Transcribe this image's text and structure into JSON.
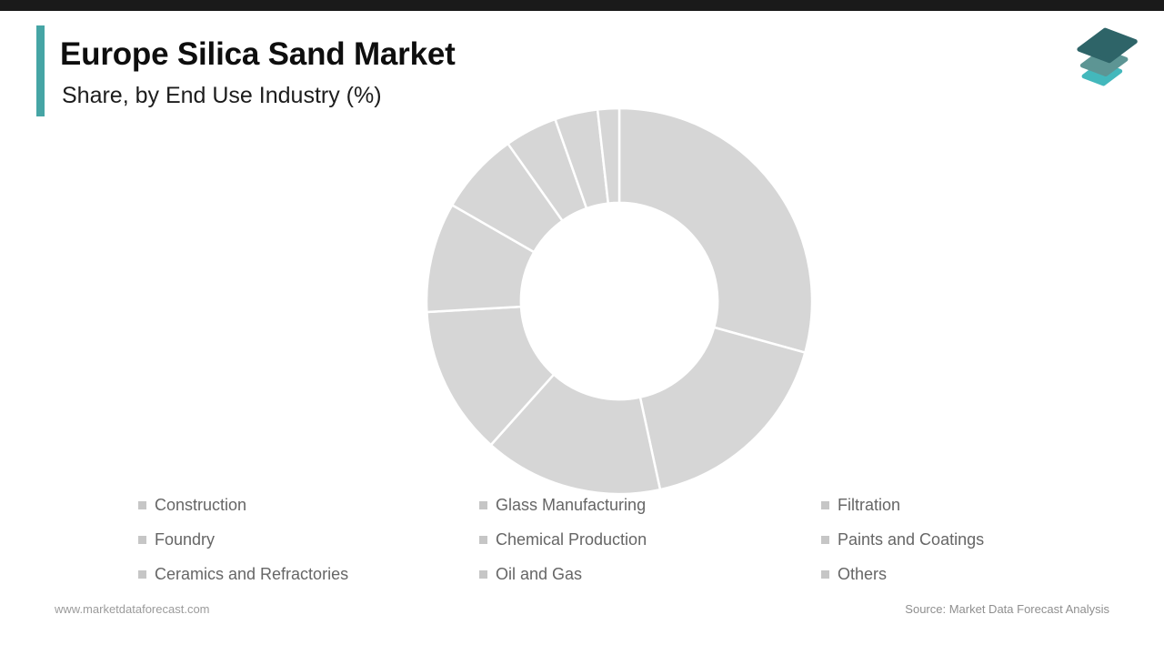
{
  "page": {
    "background": "#ffffff",
    "topbar_color": "#1a1a1a",
    "accent_color": "#46a5a5"
  },
  "header": {
    "title": "Europe Silica Sand Market",
    "subtitle": "Share, by End Use Industry (%)"
  },
  "brand": {
    "logo_colors": {
      "top": "#2e6468",
      "middle": "#5d9594",
      "bottom": "#43b8bc"
    }
  },
  "chart_data": {
    "type": "pie",
    "variant": "donut",
    "title": "Europe Silica Sand Market",
    "subtitle": "Share, by End Use Industry (%)",
    "unit": "%",
    "start_angle_deg": 0,
    "direction": "clockwise",
    "inner_radius_ratio": 0.51,
    "segment_color": "#d6d6d6",
    "divider_color": "#ffffff",
    "legend_position": "bottom",
    "series": [
      {
        "label": "Construction",
        "value": 29.3
      },
      {
        "label": "Glass Manufacturing",
        "value": 17.3
      },
      {
        "label": "Filtration",
        "value": 15.0
      },
      {
        "label": "Foundry",
        "value": 12.5
      },
      {
        "label": "Chemical Production",
        "value": 9.2
      },
      {
        "label": "Paints and Coatings",
        "value": 6.9
      },
      {
        "label": "Ceramics and Refractories",
        "value": 4.4
      },
      {
        "label": "Oil and Gas",
        "value": 3.6
      },
      {
        "label": "Others",
        "value": 1.8
      }
    ]
  },
  "legend": {
    "marker_color": "#c6c6c6",
    "text_color": "#666666",
    "columns": [
      {
        "items": [
          {
            "label": "Construction"
          },
          {
            "label": "Foundry"
          },
          {
            "label": "Ceramics and Refractories"
          }
        ]
      },
      {
        "items": [
          {
            "label": "Glass Manufacturing"
          },
          {
            "label": "Chemical Production"
          },
          {
            "label": "Oil and Gas"
          }
        ]
      },
      {
        "items": [
          {
            "label": "Filtration"
          },
          {
            "label": "Paints and Coatings"
          },
          {
            "label": "Others"
          }
        ]
      }
    ]
  },
  "footer": {
    "website": "www.marketdataforecast.com",
    "source": "Source: Market Data Forecast Analysis"
  }
}
